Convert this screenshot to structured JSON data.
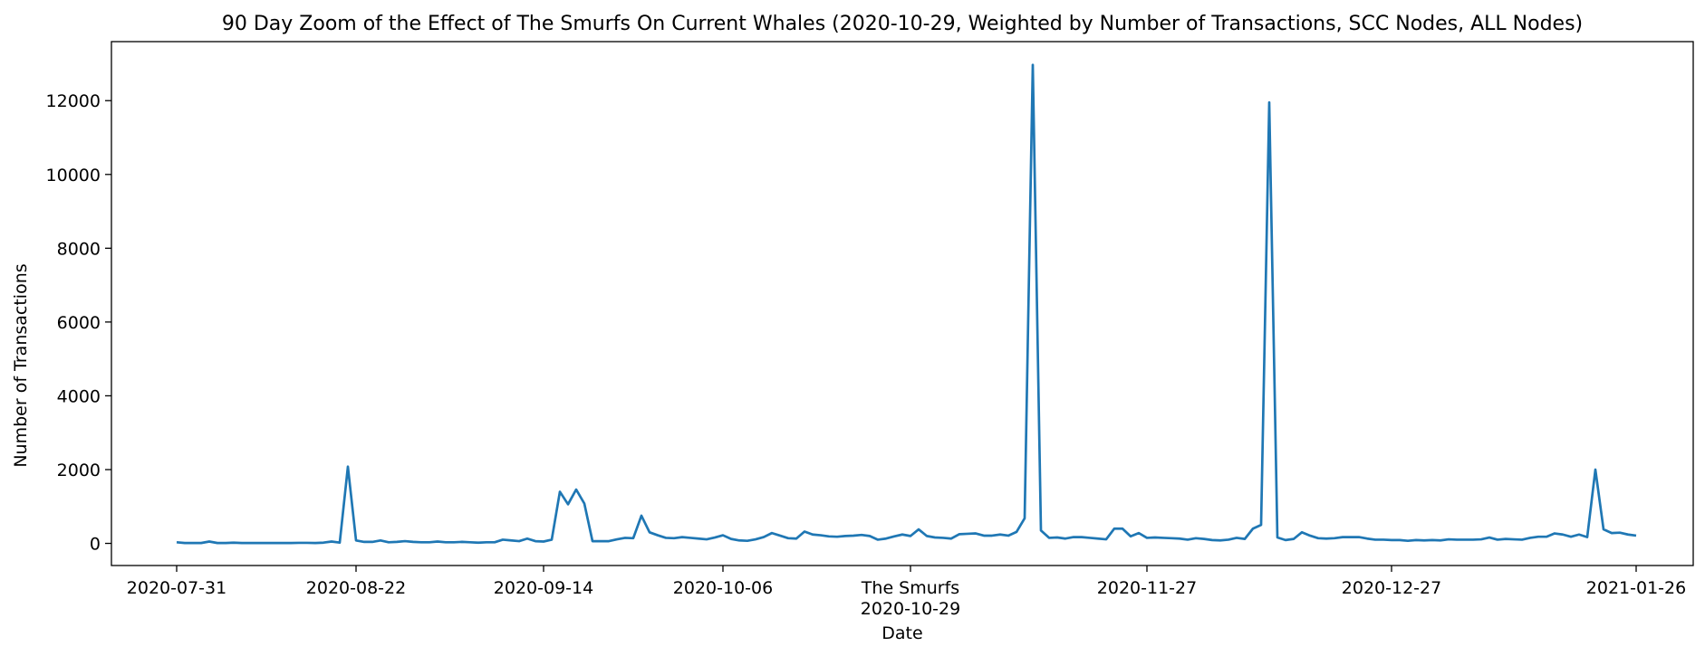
{
  "chart_data": {
    "type": "line",
    "title": "90 Day Zoom of the Effect of The Smurfs On Current Whales (2020-10-29, Weighted by Number of Transactions, SCC Nodes, ALL Nodes)",
    "xlabel": "Date",
    "ylabel": "Number of Transactions",
    "xlim": [
      "2020-07-23",
      "2021-02-02"
    ],
    "ylim": [
      -600,
      13600
    ],
    "x_ticks": [
      "2020-07-31",
      "2020-08-22",
      "2020-09-14",
      "2020-10-06",
      "2020-10-29",
      "2020-11-27",
      "2020-12-27",
      "2021-01-26"
    ],
    "x_tick_labels": [
      "2020-07-31",
      "2020-08-22",
      "2020-09-14",
      "2020-10-06",
      "The Smurfs\n2020-10-29",
      "2020-11-27",
      "2020-12-27",
      "2021-01-26"
    ],
    "y_ticks": [
      0,
      2000,
      4000,
      6000,
      8000,
      10000,
      12000
    ],
    "y_tick_labels": [
      "0",
      "2000",
      "4000",
      "6000",
      "8000",
      "10000",
      "12000"
    ],
    "grid": false,
    "color": "#1f77b4",
    "series": [
      {
        "x_start": "2020-07-31",
        "x_step_days": 1,
        "values": [
          30,
          10,
          10,
          10,
          50,
          10,
          10,
          20,
          10,
          10,
          10,
          10,
          10,
          10,
          10,
          15,
          15,
          10,
          20,
          50,
          20,
          2080,
          80,
          40,
          40,
          80,
          30,
          40,
          60,
          40,
          30,
          30,
          50,
          30,
          30,
          40,
          30,
          20,
          30,
          30,
          100,
          80,
          60,
          130,
          60,
          50,
          100,
          1400,
          1060,
          1460,
          1080,
          60,
          60,
          60,
          110,
          150,
          140,
          750,
          300,
          220,
          150,
          140,
          170,
          150,
          130,
          110,
          160,
          220,
          120,
          80,
          70,
          110,
          170,
          280,
          210,
          140,
          130,
          320,
          240,
          220,
          190,
          180,
          200,
          210,
          230,
          200,
          100,
          130,
          190,
          240,
          200,
          380,
          200,
          160,
          150,
          130,
          250,
          260,
          270,
          210,
          210,
          240,
          210,
          310,
          680,
          12970,
          350,
          150,
          160,
          130,
          170,
          170,
          150,
          130,
          110,
          400,
          400,
          190,
          280,
          150,
          160,
          150,
          140,
          130,
          100,
          140,
          120,
          90,
          80,
          100,
          150,
          120,
          400,
          500,
          11950,
          160,
          90,
          120,
          300,
          210,
          140,
          130,
          140,
          170,
          170,
          170,
          130,
          100,
          100,
          90,
          90,
          70,
          90,
          80,
          90,
          80,
          110,
          100,
          100,
          100,
          110,
          160,
          100,
          120,
          110,
          100,
          150,
          180,
          180,
          270,
          240,
          180,
          240,
          170,
          2000,
          380,
          280,
          290,
          240,
          210
        ]
      }
    ]
  }
}
